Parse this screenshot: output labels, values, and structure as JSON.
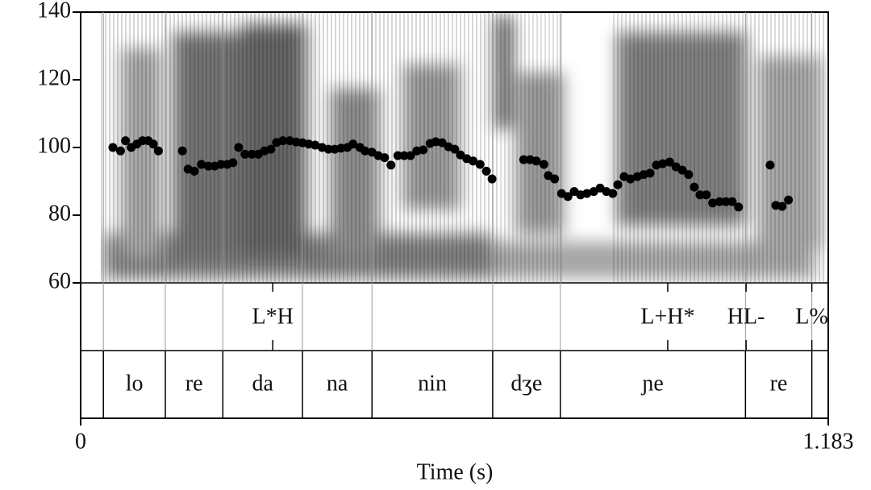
{
  "chart_data": {
    "type": "scatter",
    "x_label": "Time (s)",
    "xlim": [
      0,
      1.183
    ],
    "xticks": [
      0,
      1.183
    ],
    "ylim": [
      60,
      140
    ],
    "yticks": [
      60,
      80,
      100,
      120,
      140
    ],
    "color": "#000000",
    "x": [
      0.051,
      0.063,
      0.071,
      0.08,
      0.089,
      0.098,
      0.107,
      0.115,
      0.123,
      0.161,
      0.17,
      0.18,
      0.191,
      0.202,
      0.212,
      0.222,
      0.232,
      0.241,
      0.25,
      0.26,
      0.271,
      0.281,
      0.291,
      0.301,
      0.31,
      0.32,
      0.331,
      0.341,
      0.351,
      0.361,
      0.371,
      0.382,
      0.392,
      0.402,
      0.412,
      0.422,
      0.431,
      0.442,
      0.45,
      0.461,
      0.471,
      0.481,
      0.491,
      0.502,
      0.512,
      0.522,
      0.532,
      0.542,
      0.553,
      0.562,
      0.572,
      0.582,
      0.592,
      0.601,
      0.611,
      0.621,
      0.632,
      0.642,
      0.651,
      0.701,
      0.711,
      0.721,
      0.733,
      0.74,
      0.75,
      0.761,
      0.771,
      0.781,
      0.791,
      0.801,
      0.812,
      0.822,
      0.832,
      0.842,
      0.85,
      0.86,
      0.87,
      0.881,
      0.891,
      0.901,
      0.911,
      0.921,
      0.932,
      0.942,
      0.952,
      0.962,
      0.971,
      0.98,
      0.99,
      1.0,
      1.011,
      1.021,
      1.031,
      1.041,
      1.091,
      1.1,
      1.11,
      1.12
    ],
    "values": [
      100,
      99,
      102,
      100,
      101,
      102,
      102,
      101,
      99,
      99,
      93.6,
      93,
      95,
      94.5,
      94.5,
      95,
      95,
      95.5,
      100,
      98,
      98,
      98,
      99,
      99.5,
      101.5,
      102,
      102,
      101.6,
      101.4,
      101,
      100.7,
      100,
      99.5,
      99.5,
      99.8,
      100,
      101,
      100,
      99,
      98.6,
      97.6,
      97,
      94.8,
      97.6,
      97.6,
      97.6,
      99,
      99.3,
      101.2,
      101.7,
      101.4,
      100.2,
      99.5,
      97.8,
      96.7,
      96,
      95,
      93,
      90.7,
      96.4,
      96.4,
      96,
      95,
      91.7,
      90.7,
      86.4,
      85.5,
      87,
      86,
      86.4,
      87,
      88,
      87,
      86.4,
      89,
      91.4,
      90.7,
      91.4,
      92,
      92.4,
      94.8,
      95.2,
      95.7,
      94.3,
      93.3,
      92,
      88.3,
      86,
      86,
      83.6,
      84,
      84,
      84,
      82.4,
      94.8,
      82.9,
      82.6,
      84.5
    ],
    "tones": {
      "labels": [
        "L*H",
        "L+H*",
        "HL-",
        "L%"
      ],
      "times": [
        0.304,
        0.929,
        1.053,
        1.157
      ]
    },
    "syllables": {
      "labels": [
        "lo",
        "re",
        "da",
        "na",
        "nin",
        "dʒe",
        "ɲe",
        "re"
      ],
      "boundaries": [
        0.036,
        0.134,
        0.225,
        0.351,
        0.461,
        0.652,
        0.759,
        1.052,
        1.157
      ]
    }
  }
}
